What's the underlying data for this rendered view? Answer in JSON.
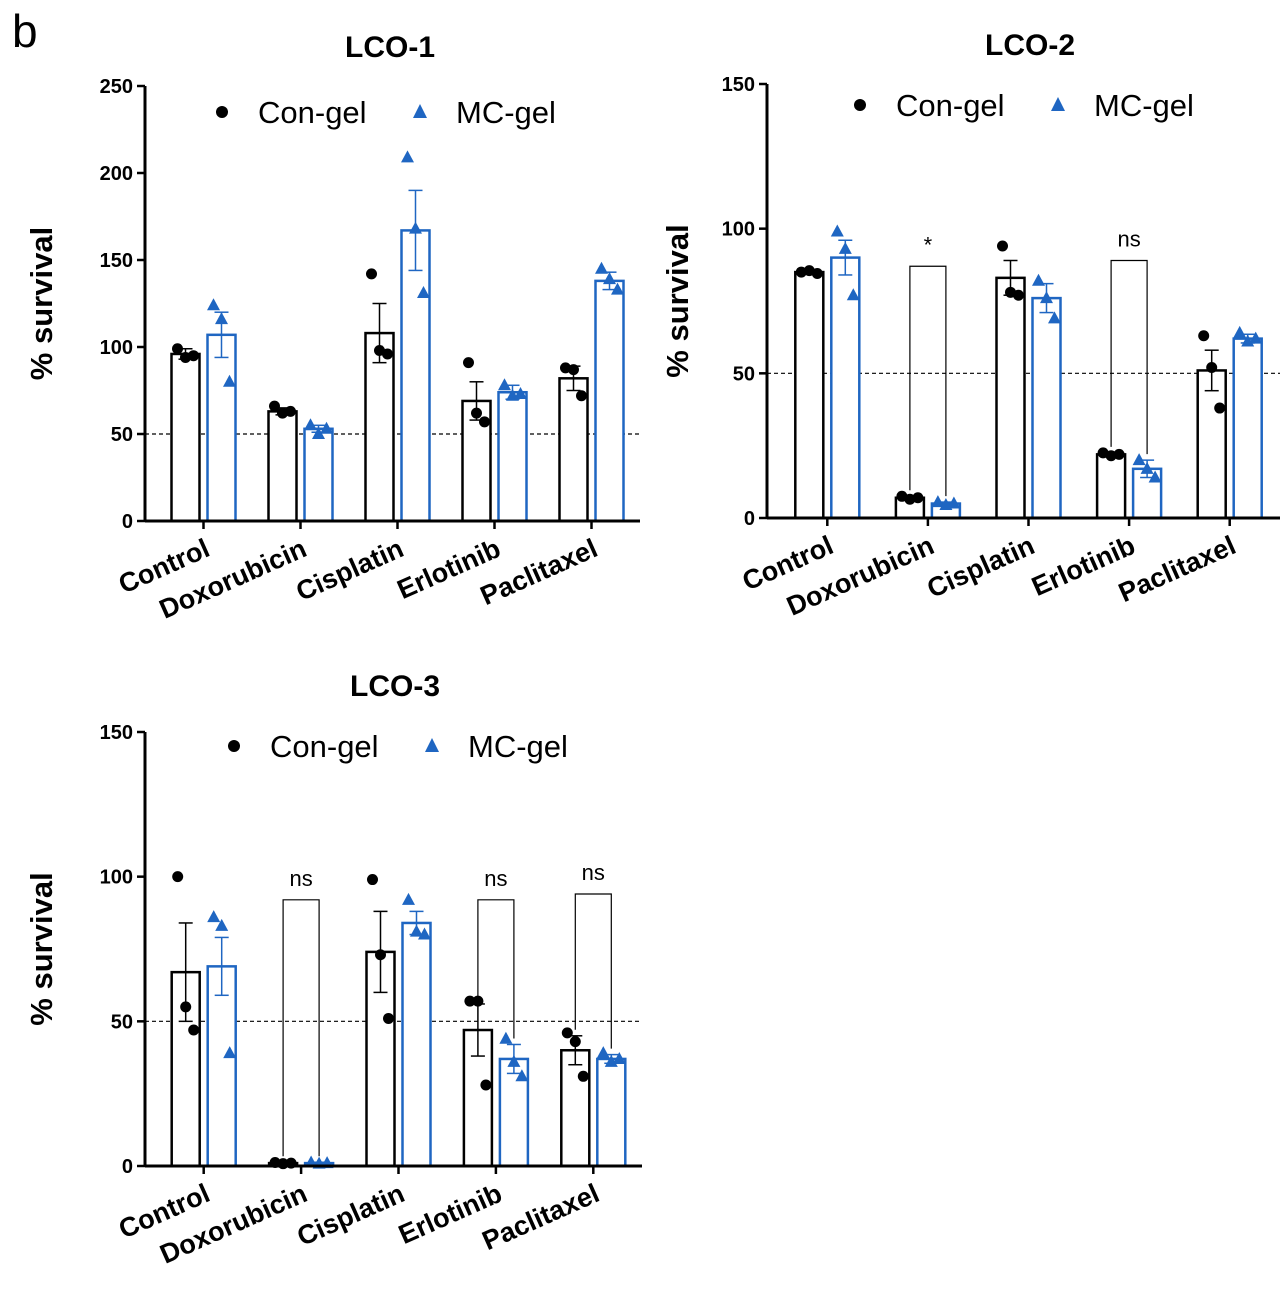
{
  "panel_label": "b",
  "colors": {
    "con": "#000000",
    "mc": "#1f66c2"
  },
  "chart_data": [
    {
      "type": "bar",
      "title": "LCO-1",
      "ylabel": "% survival",
      "xlabel": "",
      "ylim": [
        0,
        250
      ],
      "yticks": [
        0,
        50,
        100,
        150,
        200,
        250
      ],
      "reference_line": 50,
      "categories": [
        "Control",
        "Doxorubicin",
        "Cisplatin",
        "Erlotinib",
        "Paclitaxel"
      ],
      "series": [
        {
          "name": "Con-gel",
          "values": [
            96,
            63,
            108,
            69,
            82
          ],
          "sem": [
            3,
            2,
            17,
            11,
            7
          ],
          "points": [
            [
              99,
              94,
              95
            ],
            [
              66,
              62,
              63
            ],
            [
              142,
              98,
              96
            ],
            [
              91,
              62,
              57
            ],
            [
              88,
              87,
              72
            ]
          ]
        },
        {
          "name": "MC-gel",
          "values": [
            107,
            53,
            167,
            74,
            138
          ],
          "sem": [
            13,
            2,
            23,
            4,
            5
          ],
          "points": [
            [
              124,
              116,
              80
            ],
            [
              55,
              50,
              53
            ],
            [
              209,
              168,
              131
            ],
            [
              78,
              72,
              73
            ],
            [
              145,
              139,
              133
            ]
          ]
        }
      ],
      "annotations": []
    },
    {
      "type": "bar",
      "title": "LCO-2",
      "ylabel": "% survival",
      "xlabel": "",
      "ylim": [
        0,
        150
      ],
      "yticks": [
        0,
        50,
        100,
        150
      ],
      "reference_line": 50,
      "categories": [
        "Control",
        "Doxorubicin",
        "Cisplatin",
        "Erlotinib",
        "Paclitaxel"
      ],
      "series": [
        {
          "name": "Con-gel",
          "values": [
            85,
            7,
            83,
            22,
            51
          ],
          "sem": [
            0.5,
            0.5,
            6,
            0.5,
            7
          ],
          "points": [
            [
              85,
              85.5,
              84.5
            ],
            [
              7.5,
              6.5,
              7
            ],
            [
              94,
              78,
              77
            ],
            [
              22.5,
              21.5,
              22
            ],
            [
              63,
              52,
              38
            ]
          ]
        },
        {
          "name": "MC-gel",
          "values": [
            90,
            5,
            76,
            17,
            62
          ],
          "sem": [
            6,
            0.5,
            5,
            3,
            1.5
          ],
          "points": [
            [
              99,
              93,
              77
            ],
            [
              5.5,
              4.5,
              5
            ],
            [
              82,
              76,
              69
            ],
            [
              20,
              17,
              14
            ],
            [
              64,
              61,
              62
            ]
          ]
        }
      ],
      "annotations": [
        {
          "type": "bracket",
          "category": "Doxorubicin",
          "label": "*",
          "y": 87
        },
        {
          "type": "bracket",
          "category": "Erlotinib",
          "label": "ns",
          "y": 89
        }
      ]
    },
    {
      "type": "bar",
      "title": "LCO-3",
      "ylabel": "% survival",
      "xlabel": "",
      "ylim": [
        0,
        150
      ],
      "yticks": [
        0,
        50,
        100,
        150
      ],
      "reference_line": 50,
      "categories": [
        "Control",
        "Doxorubicin",
        "Cisplatin",
        "Erlotinib",
        "Paclitaxel"
      ],
      "series": [
        {
          "name": "Con-gel",
          "values": [
            67,
            1,
            74,
            47,
            40
          ],
          "sem": [
            17,
            0.3,
            14,
            9,
            5
          ],
          "points": [
            [
              100,
              55,
              47
            ],
            [
              1.2,
              0.8,
              1
            ],
            [
              99,
              73,
              51
            ],
            [
              57,
              57,
              28
            ],
            [
              46,
              43,
              31
            ]
          ]
        },
        {
          "name": "MC-gel",
          "values": [
            69,
            1,
            84,
            37,
            37
          ],
          "sem": [
            10,
            0.3,
            4,
            5,
            1.5
          ],
          "points": [
            [
              86,
              83,
              39
            ],
            [
              1.2,
              0.8,
              1
            ],
            [
              92,
              81,
              80
            ],
            [
              44,
              36,
              31
            ],
            [
              39,
              36,
              37
            ]
          ]
        }
      ],
      "annotations": [
        {
          "type": "bracket",
          "category": "Doxorubicin",
          "label": "ns",
          "y": 92
        },
        {
          "type": "bracket",
          "category": "Erlotinib",
          "label": "ns",
          "y": 92
        },
        {
          "type": "bracket",
          "category": "Paclitaxel",
          "label": "ns",
          "y": 94
        }
      ]
    }
  ]
}
